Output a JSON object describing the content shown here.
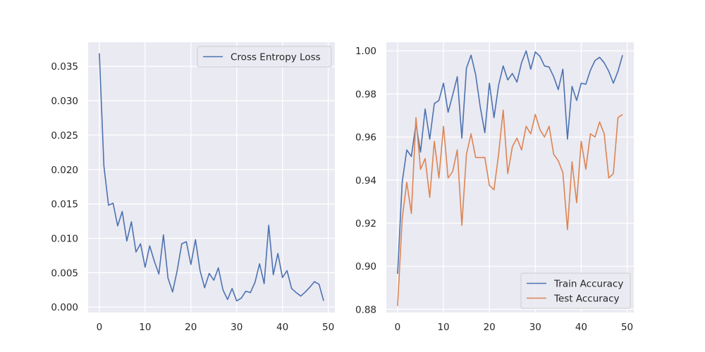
{
  "chart_data": [
    {
      "type": "line",
      "title": "",
      "xlabel": "",
      "ylabel": "",
      "xlim": [
        -2.45,
        51.45
      ],
      "ylim": [
        -0.0008,
        0.0385
      ],
      "xticks": [
        0,
        10,
        20,
        30,
        40,
        50
      ],
      "xtick_labels": [
        "0",
        "10",
        "20",
        "30",
        "40",
        "50"
      ],
      "yticks": [
        0.0,
        0.005,
        0.01,
        0.015,
        0.02,
        0.025,
        0.03,
        0.035
      ],
      "ytick_labels": [
        "0.000",
        "0.005",
        "0.010",
        "0.015",
        "0.020",
        "0.025",
        "0.030",
        "0.035"
      ],
      "grid": true,
      "legend": "top-right",
      "series": [
        {
          "name": "Cross Entropy Loss",
          "color": "#4c72b0",
          "x": [
            0,
            1,
            2,
            3,
            4,
            5,
            6,
            7,
            8,
            9,
            10,
            11,
            12,
            13,
            14,
            15,
            16,
            17,
            18,
            19,
            20,
            21,
            22,
            23,
            24,
            25,
            26,
            27,
            28,
            29,
            30,
            31,
            32,
            33,
            34,
            35,
            36,
            37,
            38,
            39,
            40,
            41,
            42,
            43,
            44,
            45,
            46,
            47,
            48,
            49
          ],
          "values": [
            0.0369,
            0.0205,
            0.0148,
            0.0151,
            0.0118,
            0.0139,
            0.0096,
            0.0124,
            0.008,
            0.0092,
            0.0058,
            0.0089,
            0.0067,
            0.0048,
            0.0105,
            0.0042,
            0.0022,
            0.0053,
            0.0092,
            0.0095,
            0.0062,
            0.0098,
            0.0053,
            0.0028,
            0.0049,
            0.0039,
            0.0057,
            0.0025,
            0.0011,
            0.0027,
            0.0009,
            0.0013,
            0.0023,
            0.0021,
            0.0036,
            0.0063,
            0.0034,
            0.0119,
            0.0047,
            0.0078,
            0.0043,
            0.0053,
            0.0027,
            0.0021,
            0.0016,
            0.0022,
            0.0029,
            0.0037,
            0.0033,
            0.0009
          ]
        }
      ]
    },
    {
      "type": "line",
      "title": "",
      "xlabel": "",
      "ylabel": "",
      "xlim": [
        -2.45,
        51.45
      ],
      "ylim": [
        0.8785,
        1.004
      ],
      "xticks": [
        0,
        10,
        20,
        30,
        40,
        50
      ],
      "xtick_labels": [
        "0",
        "10",
        "20",
        "30",
        "40",
        "50"
      ],
      "yticks": [
        0.88,
        0.9,
        0.92,
        0.94,
        0.96,
        0.98,
        1.0
      ],
      "ytick_labels": [
        "0.88",
        "0.90",
        "0.92",
        "0.94",
        "0.96",
        "0.98",
        "1.00"
      ],
      "grid": true,
      "legend": "bottom-right",
      "series": [
        {
          "name": "Train Accuracy",
          "color": "#4c72b0",
          "x": [
            0,
            1,
            2,
            3,
            4,
            5,
            6,
            7,
            8,
            9,
            10,
            11,
            12,
            13,
            14,
            15,
            16,
            17,
            18,
            19,
            20,
            21,
            22,
            23,
            24,
            25,
            26,
            27,
            28,
            29,
            30,
            31,
            32,
            33,
            34,
            35,
            36,
            37,
            38,
            39,
            40,
            41,
            42,
            43,
            44,
            45,
            46,
            47,
            48,
            49
          ],
          "values": [
            0.8965,
            0.939,
            0.954,
            0.951,
            0.966,
            0.953,
            0.973,
            0.959,
            0.9755,
            0.977,
            0.985,
            0.9715,
            0.9795,
            0.988,
            0.9595,
            0.992,
            0.998,
            0.989,
            0.974,
            0.962,
            0.985,
            0.969,
            0.984,
            0.993,
            0.9865,
            0.9895,
            0.9855,
            0.9945,
            1.0,
            0.9915,
            0.9995,
            0.9975,
            0.993,
            0.9925,
            0.988,
            0.982,
            0.9915,
            0.959,
            0.9835,
            0.977,
            0.985,
            0.9845,
            0.991,
            0.9955,
            0.997,
            0.9945,
            0.9905,
            0.985,
            0.9905,
            0.998
          ]
        },
        {
          "name": "Test Accuracy",
          "color": "#dd8452",
          "x": [
            0,
            1,
            2,
            3,
            4,
            5,
            6,
            7,
            8,
            9,
            10,
            11,
            12,
            13,
            14,
            15,
            16,
            17,
            18,
            19,
            20,
            21,
            22,
            23,
            24,
            25,
            26,
            27,
            28,
            29,
            30,
            31,
            32,
            33,
            34,
            35,
            36,
            37,
            38,
            39,
            40,
            41,
            42,
            43,
            44,
            45,
            46,
            47,
            48,
            49
          ],
          "values": [
            0.8815,
            0.922,
            0.939,
            0.9245,
            0.969,
            0.945,
            0.95,
            0.932,
            0.958,
            0.941,
            0.965,
            0.941,
            0.944,
            0.954,
            0.919,
            0.952,
            0.9615,
            0.9505,
            0.9505,
            0.9505,
            0.9375,
            0.9355,
            0.952,
            0.9725,
            0.943,
            0.9555,
            0.9595,
            0.954,
            0.965,
            0.9615,
            0.9705,
            0.9635,
            0.96,
            0.965,
            0.952,
            0.949,
            0.9435,
            0.917,
            0.9485,
            0.9295,
            0.958,
            0.945,
            0.9615,
            0.96,
            0.967,
            0.9615,
            0.941,
            0.943,
            0.969,
            0.9705
          ]
        }
      ]
    }
  ]
}
